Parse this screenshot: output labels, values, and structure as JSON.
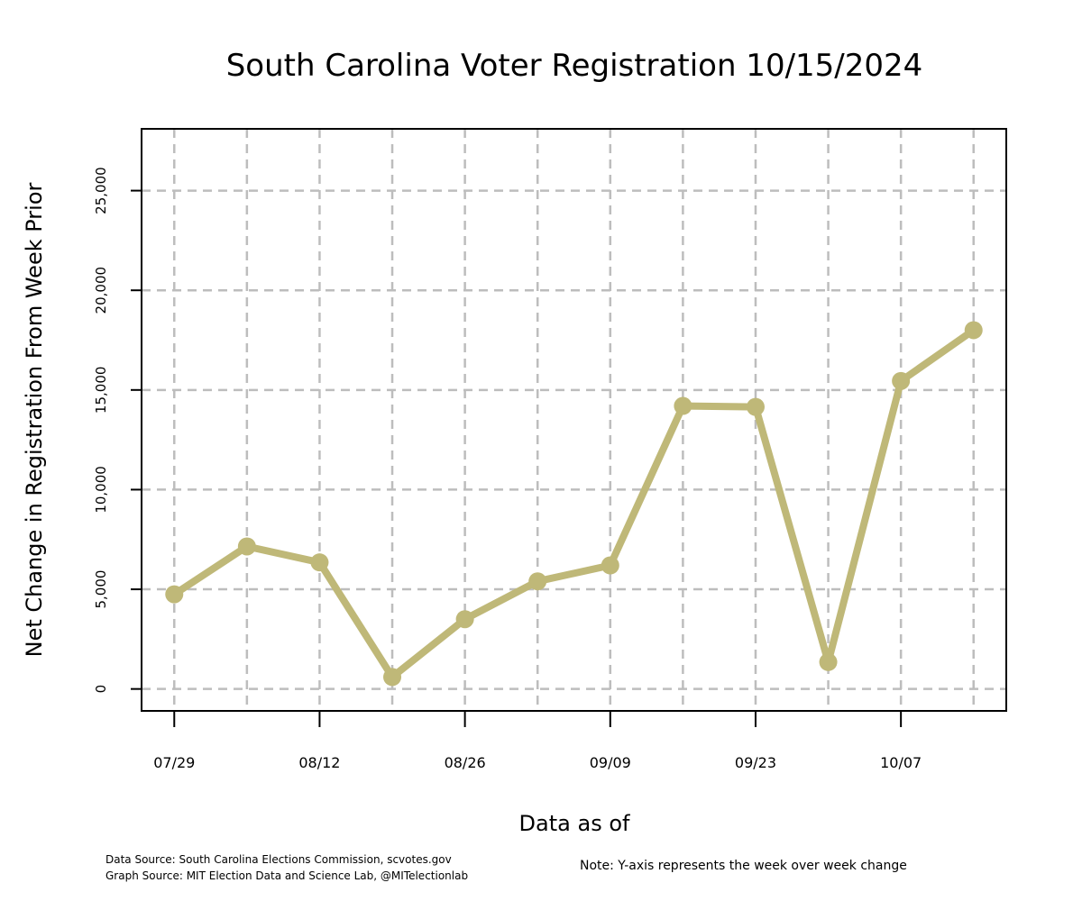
{
  "chart_data": {
    "type": "line",
    "title": "South Carolina Voter Registration 10/15/2024",
    "xlabel": "Data as of",
    "ylabel": "Net Change in Registration From Week Prior",
    "x": [
      "07/29",
      "08/05",
      "08/12",
      "08/19",
      "08/26",
      "09/02",
      "09/09",
      "09/16",
      "09/23",
      "09/30",
      "10/07",
      "10/14"
    ],
    "values": [
      4750,
      7150,
      6350,
      600,
      3500,
      5400,
      6200,
      14200,
      14150,
      1350,
      15450,
      18000
    ],
    "x_tick_labels": [
      "07/29",
      "08/12",
      "08/26",
      "09/09",
      "09/23",
      "10/07"
    ],
    "y_ticks": [
      0,
      5000,
      10000,
      15000,
      20000,
      25000
    ],
    "y_tick_labels": [
      "0",
      "5,000",
      "10,000",
      "15,000",
      "20,000",
      "25,000"
    ],
    "ylim": [
      -1100,
      28100
    ],
    "grid": true,
    "line_color": "#bfb878",
    "grid_color": "#bdbdbd"
  },
  "footer": {
    "data_source": "Data Source: South Carolina Elections Commission, scvotes.gov",
    "graph_source": "Graph Source: MIT Election Data and Science Lab, @MITelectionlab",
    "note": "Note: Y-axis represents the week over week change"
  }
}
